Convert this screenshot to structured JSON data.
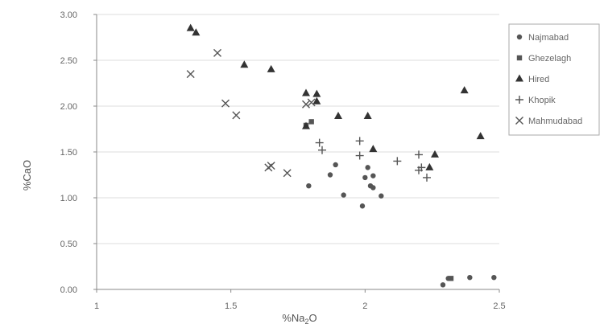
{
  "chart_data": {
    "type": "scatter",
    "xlabel": "%Na2O",
    "xlabel_parts": {
      "base": "%Na",
      "sub": "2",
      "tail": "O"
    },
    "ylabel": "%CaO",
    "xlim": [
      1,
      2.5
    ],
    "ylim": [
      0,
      3
    ],
    "xticks": [
      "1",
      "1.5",
      "2",
      "2.5"
    ],
    "yticks": [
      "0.00",
      "0.50",
      "1.00",
      "1.50",
      "2.00",
      "2.50",
      "3.00"
    ],
    "grid": "horizontal",
    "legend_position": "right",
    "series": [
      {
        "name": "Najmabad",
        "marker": "circle",
        "color": "#555555",
        "points": [
          [
            1.79,
            1.13
          ],
          [
            1.87,
            1.25
          ],
          [
            1.89,
            1.36
          ],
          [
            1.92,
            1.03
          ],
          [
            1.99,
            0.91
          ],
          [
            2.0,
            1.22
          ],
          [
            2.02,
            1.13
          ],
          [
            2.03,
            1.11
          ],
          [
            2.03,
            1.24
          ],
          [
            2.06,
            1.02
          ],
          [
            2.01,
            1.33
          ],
          [
            2.29,
            0.05
          ],
          [
            2.31,
            0.12
          ],
          [
            2.39,
            0.13
          ],
          [
            2.48,
            0.13
          ]
        ]
      },
      {
        "name": "Ghezelagh",
        "marker": "square",
        "color": "#555555",
        "points": [
          [
            1.78,
            1.79
          ],
          [
            1.8,
            1.83
          ],
          [
            2.32,
            0.12
          ]
        ]
      },
      {
        "name": "Hired",
        "marker": "triangle",
        "color": "#333333",
        "points": [
          [
            1.35,
            2.85
          ],
          [
            1.37,
            2.8
          ],
          [
            1.55,
            2.45
          ],
          [
            1.65,
            2.4
          ],
          [
            1.78,
            2.14
          ],
          [
            1.82,
            2.13
          ],
          [
            1.82,
            2.05
          ],
          [
            1.78,
            1.78
          ],
          [
            1.9,
            1.89
          ],
          [
            2.01,
            1.89
          ],
          [
            2.03,
            1.53
          ],
          [
            2.26,
            1.47
          ],
          [
            2.24,
            1.33
          ],
          [
            2.37,
            2.17
          ],
          [
            2.43,
            1.67
          ]
        ]
      },
      {
        "name": "Khopik",
        "marker": "plus",
        "color": "#555555",
        "points": [
          [
            1.83,
            1.6
          ],
          [
            1.84,
            1.52
          ],
          [
            1.98,
            1.62
          ],
          [
            1.98,
            1.46
          ],
          [
            2.12,
            1.4
          ],
          [
            2.2,
            1.47
          ],
          [
            2.2,
            1.3
          ],
          [
            2.21,
            1.33
          ],
          [
            2.23,
            1.22
          ]
        ]
      },
      {
        "name": "Mahmudabad",
        "marker": "x",
        "color": "#555555",
        "points": [
          [
            1.35,
            2.35
          ],
          [
            1.45,
            2.58
          ],
          [
            1.48,
            2.03
          ],
          [
            1.52,
            1.9
          ],
          [
            1.64,
            1.33
          ],
          [
            1.65,
            1.35
          ],
          [
            1.71,
            1.27
          ],
          [
            1.78,
            2.02
          ],
          [
            1.8,
            2.04
          ]
        ]
      }
    ]
  }
}
